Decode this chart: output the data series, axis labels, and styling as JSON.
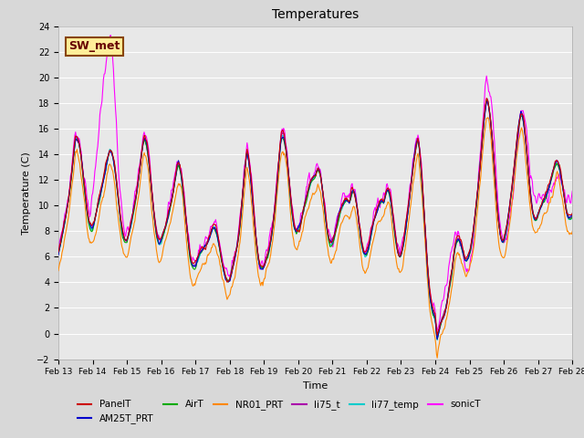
{
  "title": "Temperatures",
  "xlabel": "Time",
  "ylabel": "Temperature (C)",
  "ylim": [
    -2,
    24
  ],
  "yticks": [
    -2,
    0,
    2,
    4,
    6,
    8,
    10,
    12,
    14,
    16,
    18,
    20,
    22,
    24
  ],
  "xtick_labels": [
    "Feb 13",
    "Feb 14",
    "Feb 15",
    "Feb 16",
    "Feb 17",
    "Feb 18",
    "Feb 19",
    "Feb 20",
    "Feb 21",
    "Feb 22",
    "Feb 23",
    "Feb 24",
    "Feb 25",
    "Feb 26",
    "Feb 27",
    "Feb 28"
  ],
  "series": {
    "PanelT": {
      "color": "#cc0000",
      "lw": 0.8
    },
    "AM25T_PRT": {
      "color": "#0000cc",
      "lw": 0.8
    },
    "AirT": {
      "color": "#00aa00",
      "lw": 0.8
    },
    "NR01_PRT": {
      "color": "#ff8800",
      "lw": 0.8
    },
    "li75_t": {
      "color": "#aa00aa",
      "lw": 0.8
    },
    "li77_temp": {
      "color": "#00cccc",
      "lw": 0.8
    },
    "sonicT": {
      "color": "#ff00ff",
      "lw": 0.8
    }
  },
  "annotation": {
    "text": "SW_met",
    "facecolor": "#ffee99",
    "edgecolor": "#884400",
    "fontsize": 9
  },
  "background_color": "#e8e8e8",
  "grid_color": "#ffffff",
  "title_fontsize": 10,
  "fig_width": 6.4,
  "fig_height": 4.8,
  "dpi": 100
}
